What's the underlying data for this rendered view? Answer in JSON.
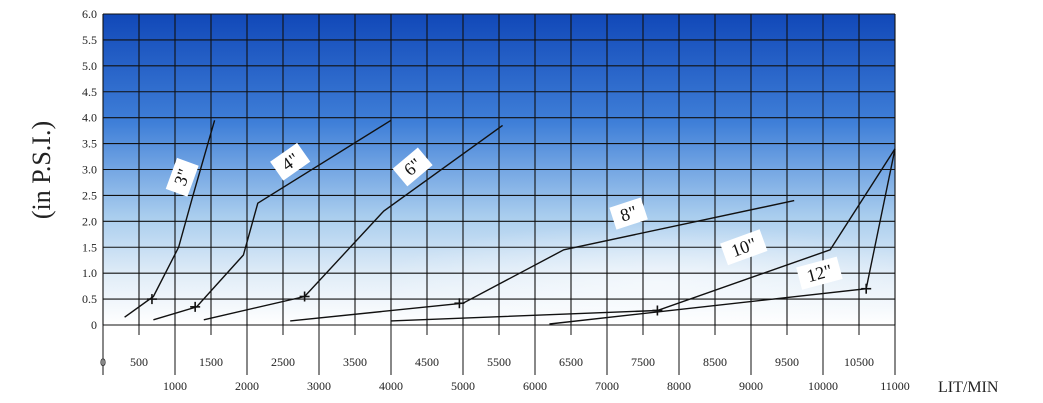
{
  "chart_data": {
    "type": "line",
    "title": "",
    "ylabel": "(in P.S.I.)",
    "xlabel": "LIT/MIN",
    "xlim": [
      0,
      11000
    ],
    "ylim": [
      0,
      6.0
    ],
    "grid": true,
    "legend": "labels on curves",
    "y_ticks": [
      "0",
      "0.5",
      "1.0",
      "1.5",
      "2.0",
      "2.5",
      "3.0",
      "3.5",
      "4.0",
      "4.5",
      "5.0",
      "5.5",
      "6.0"
    ],
    "x_ticks_upper": [
      "0",
      "500",
      "1500",
      "2500",
      "3500",
      "4500",
      "5500",
      "6500",
      "7500",
      "8500",
      "9500",
      "10500"
    ],
    "x_ticks_lower": [
      "1000",
      "2000",
      "3000",
      "4000",
      "5000",
      "6000",
      "7000",
      "8000",
      "9000",
      "10000",
      "11000"
    ],
    "series": [
      {
        "name": "3\"",
        "points": [
          [
            300,
            0.15
          ],
          [
            700,
            0.55
          ],
          [
            1050,
            1.5
          ],
          [
            1250,
            2.5
          ],
          [
            1550,
            3.95
          ]
        ],
        "marker": [
          680,
          0.5
        ],
        "label_at": [
          1100,
          2.85
        ]
      },
      {
        "name": "4\"",
        "points": [
          [
            700,
            0.1
          ],
          [
            1300,
            0.35
          ],
          [
            1950,
            1.35
          ],
          [
            2150,
            2.35
          ],
          [
            4000,
            3.95
          ]
        ],
        "marker": [
          1280,
          0.35
        ],
        "label_at": [
          2600,
          3.15
        ]
      },
      {
        "name": "6\"",
        "points": [
          [
            1400,
            0.1
          ],
          [
            2800,
            0.55
          ],
          [
            3900,
            2.2
          ],
          [
            5550,
            3.85
          ]
        ],
        "marker": [
          2800,
          0.55
        ],
        "label_at": [
          4300,
          3.05
        ]
      },
      {
        "name": "8\"",
        "points": [
          [
            2600,
            0.08
          ],
          [
            5000,
            0.42
          ],
          [
            6400,
            1.45
          ],
          [
            9600,
            2.4
          ]
        ],
        "marker": [
          4950,
          0.42
        ],
        "label_at": [
          7300,
          2.15
        ]
      },
      {
        "name": "10\"",
        "points": [
          [
            4000,
            0.08
          ],
          [
            7700,
            0.28
          ],
          [
            10100,
            1.45
          ],
          [
            11000,
            3.4
          ]
        ],
        "marker": [
          7700,
          0.28
        ],
        "label_at": [
          8900,
          1.5
        ]
      },
      {
        "name": "12\"",
        "points": [
          [
            6200,
            0.02
          ],
          [
            10600,
            0.7
          ],
          [
            11000,
            3.4
          ]
        ],
        "marker": [
          10600,
          0.7
        ],
        "label_at": [
          9950,
          1.0
        ]
      }
    ]
  }
}
